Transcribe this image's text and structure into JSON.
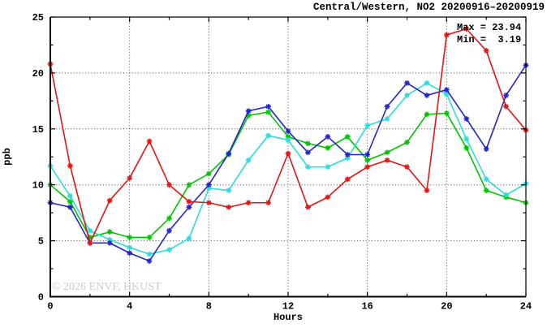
{
  "watermark": "© 2026 ENVF, HKUST",
  "annotation": {
    "max_line": "Max = 23.94",
    "min_line": "Min =  3.19",
    "max_value": 23.94,
    "min_value": 3.19
  },
  "chart_data": {
    "type": "line",
    "title": "Central/Western, NO2 20200916–20200919",
    "xlabel": "Hours",
    "ylabel": "ppb",
    "xlim": [
      0,
      24
    ],
    "ylim": [
      0,
      25
    ],
    "xticks": [
      0,
      4,
      8,
      12,
      16,
      20,
      24
    ],
    "yticks": [
      0,
      5,
      10,
      15,
      20,
      25
    ],
    "x_minor_step": 2,
    "y_minor_step": 2.5,
    "grid": "dotted at major ticks",
    "legend": "none",
    "marker": "asterisk",
    "x": [
      0,
      1,
      2,
      3,
      4,
      5,
      6,
      7,
      8,
      9,
      10,
      11,
      12,
      13,
      14,
      15,
      16,
      17,
      18,
      19,
      20,
      21,
      22,
      23,
      24
    ],
    "series": [
      {
        "name": "green",
        "color": "#00c400",
        "values": [
          10.0,
          8.5,
          5.3,
          5.8,
          5.3,
          5.3,
          7.0,
          10.0,
          11.0,
          12.7,
          16.2,
          16.5,
          14.3,
          13.7,
          13.3,
          14.3,
          12.2,
          12.9,
          13.8,
          16.3,
          16.4,
          13.3,
          9.5,
          8.9,
          8.4
        ]
      },
      {
        "name": "cyan",
        "color": "#2edcdc",
        "values": [
          11.7,
          9.0,
          5.9,
          5.1,
          4.4,
          3.8,
          4.2,
          5.2,
          9.7,
          9.5,
          12.2,
          14.4,
          14.0,
          11.6,
          11.6,
          12.4,
          15.3,
          15.9,
          18.0,
          19.1,
          18.1,
          14.1,
          10.5,
          9.1,
          10.1
        ]
      },
      {
        "name": "blue",
        "color": "#2424cc",
        "values": [
          8.4,
          8.0,
          4.8,
          4.8,
          3.9,
          3.19,
          5.9,
          8.0,
          10.0,
          12.8,
          16.6,
          17.0,
          14.8,
          12.9,
          14.3,
          12.7,
          12.7,
          17.0,
          19.1,
          18.0,
          18.5,
          15.9,
          13.2,
          18.0,
          20.7
        ]
      },
      {
        "name": "red",
        "color": "#e71414",
        "values": [
          20.8,
          11.7,
          4.8,
          8.6,
          10.6,
          13.9,
          10.0,
          8.5,
          8.4,
          8.0,
          8.4,
          8.4,
          12.8,
          8.0,
          8.9,
          10.5,
          11.6,
          12.2,
          11.6,
          9.5,
          23.4,
          23.94,
          22.0,
          17.0,
          14.9
        ]
      }
    ]
  }
}
